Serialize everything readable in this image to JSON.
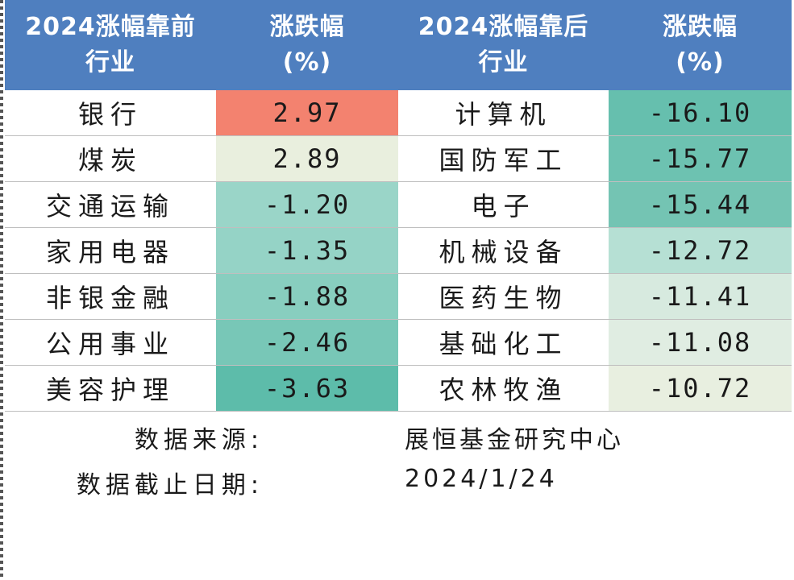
{
  "header": {
    "col1": "2024涨幅靠前\n行业",
    "col2": "涨跌幅\n(%)",
    "col3": "2024涨幅靠后\n行业",
    "col4": "涨跌幅\n(%)"
  },
  "rows": [
    {
      "top_industry": "银行",
      "top_change": "2.97",
      "top_color": "#f3826f",
      "bottom_industry": "计算机",
      "bottom_change": "-16.10",
      "bottom_color": "#66bfae"
    },
    {
      "top_industry": "煤炭",
      "top_change": "2.89",
      "top_color": "#e9efde",
      "bottom_industry": "国防军工",
      "bottom_change": "-15.77",
      "bottom_color": "#6dc2b1"
    },
    {
      "top_industry": "交通运输",
      "top_change": "-1.20",
      "top_color": "#9ad5c8",
      "bottom_industry": "电子",
      "bottom_change": "-15.44",
      "bottom_color": "#74c4b3"
    },
    {
      "top_industry": "家用电器",
      "top_change": "-1.35",
      "top_color": "#95d3c6",
      "bottom_industry": "机械设备",
      "bottom_change": "-12.72",
      "bottom_color": "#b6e0d4"
    },
    {
      "top_industry": "非银金融",
      "top_change": "-1.88",
      "top_color": "#88cebf",
      "bottom_industry": "医药生物",
      "bottom_change": "-11.41",
      "bottom_color": "#d7eadf"
    },
    {
      "top_industry": "公用事业",
      "top_change": "-2.46",
      "top_color": "#78c7b7",
      "bottom_industry": "基础化工",
      "bottom_change": "-11.08",
      "bottom_color": "#e0ede2"
    },
    {
      "top_industry": "美容护理",
      "top_change": "-3.63",
      "top_color": "#5dbcaa",
      "bottom_industry": "农林牧渔",
      "bottom_change": "-10.72",
      "bottom_color": "#e8efe0"
    }
  ],
  "footer": {
    "source_label": "数据来源:",
    "source_value": "展恒基金研究中心",
    "date_label": "数据截止日期:",
    "date_value": "2024/1/24"
  },
  "colors": {
    "header_bg": "#4f7fbf",
    "header_text": "#ffffff"
  }
}
